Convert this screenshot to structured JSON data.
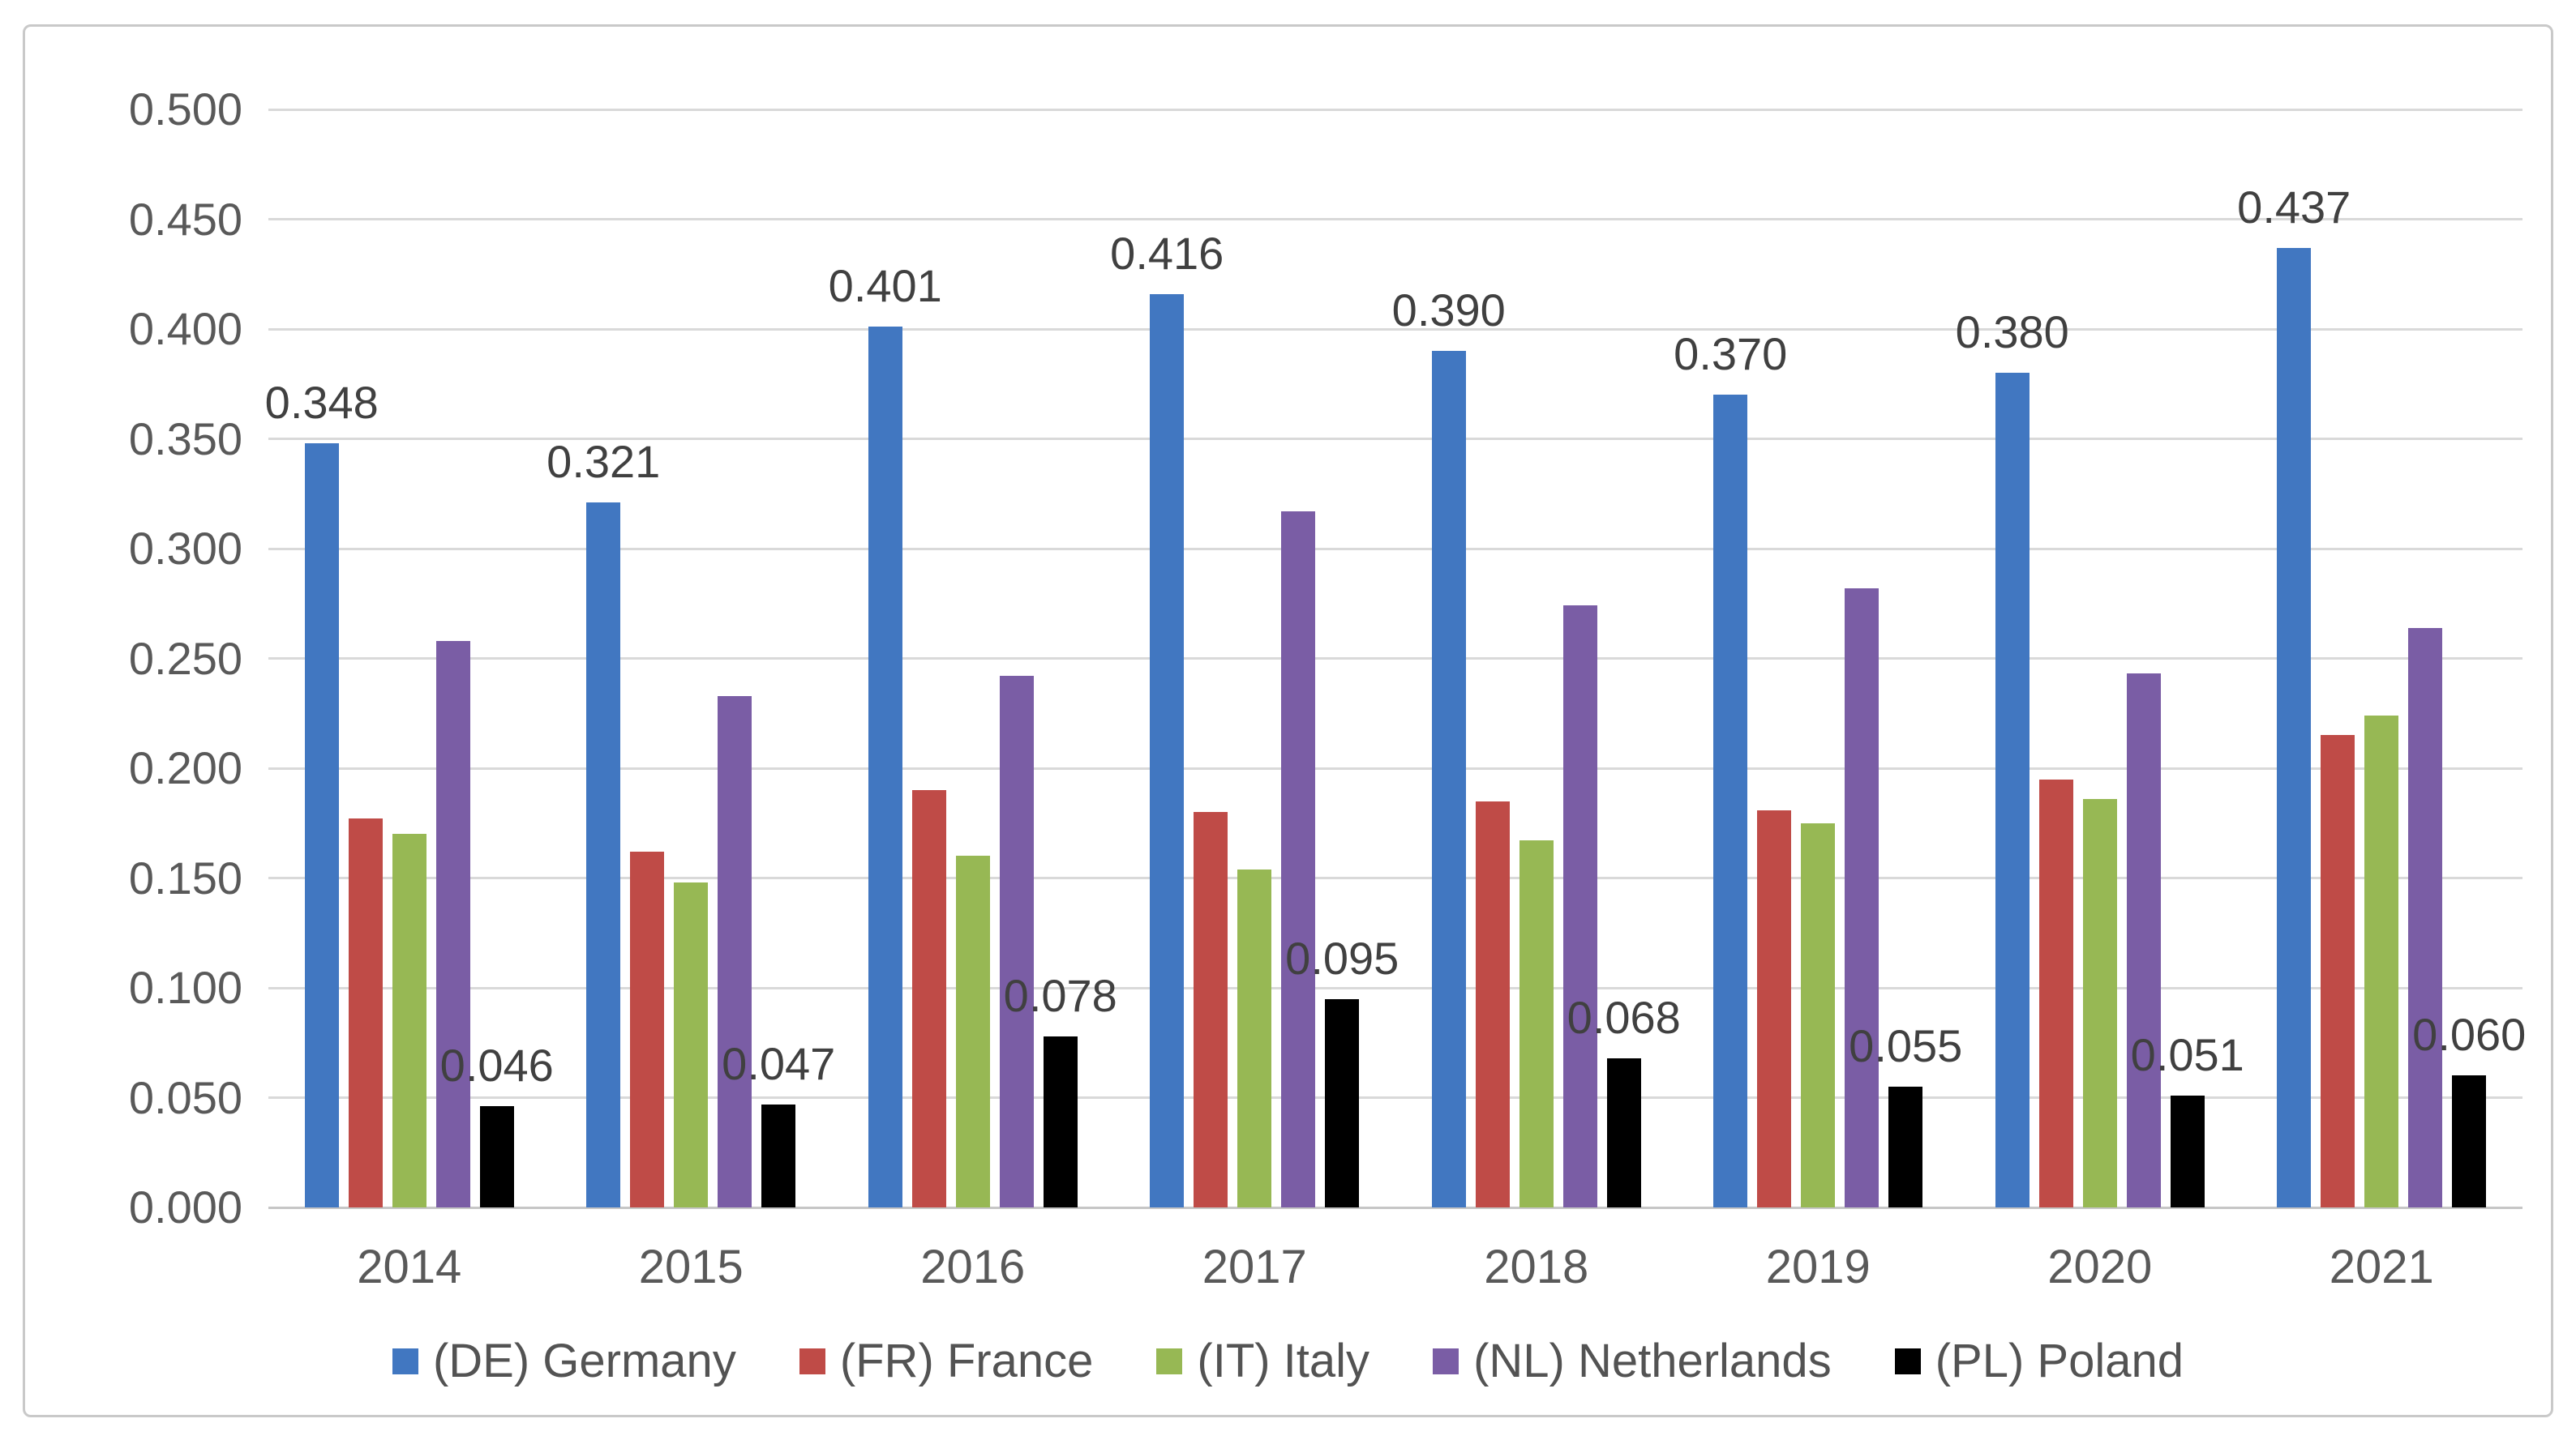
{
  "chart_data": {
    "type": "bar",
    "title": "",
    "categories": [
      "2014",
      "2015",
      "2016",
      "2017",
      "2018",
      "2019",
      "2020",
      "2021"
    ],
    "series": [
      {
        "name": "(DE) Germany",
        "color": "#4177C1",
        "data_labels": true,
        "values": [
          0.348,
          0.321,
          0.401,
          0.416,
          0.39,
          0.37,
          0.38,
          0.437
        ]
      },
      {
        "name": "(FR) France",
        "color": "#BF4B47",
        "data_labels": false,
        "values": [
          0.177,
          0.162,
          0.19,
          0.18,
          0.185,
          0.181,
          0.195,
          0.215
        ]
      },
      {
        "name": "(IT) Italy",
        "color": "#97B854",
        "data_labels": false,
        "values": [
          0.17,
          0.148,
          0.16,
          0.154,
          0.167,
          0.175,
          0.186,
          0.224
        ]
      },
      {
        "name": "(NL) Netherlands",
        "color": "#7A5DA5",
        "data_labels": false,
        "values": [
          0.258,
          0.233,
          0.242,
          0.317,
          0.274,
          0.282,
          0.243,
          0.264
        ]
      },
      {
        "name": "(PL) Poland",
        "color": "#000000",
        "data_labels": true,
        "values": [
          0.046,
          0.047,
          0.078,
          0.095,
          0.068,
          0.055,
          0.051,
          0.06
        ]
      }
    ],
    "y_axis": {
      "min": 0.0,
      "max": 0.5,
      "step": 0.05,
      "tick_labels": [
        "0.000",
        "0.050",
        "0.100",
        "0.150",
        "0.200",
        "0.250",
        "0.300",
        "0.350",
        "0.400",
        "0.450",
        "0.500"
      ],
      "label_decimals": 3
    },
    "grid": true,
    "legend_position": "bottom"
  },
  "colors": {
    "grid": "#d9d9d9",
    "axis_line": "#c6c6c6",
    "axis_text": "#595959",
    "data_label_text": "#404040",
    "frame_border": "#c9c9c9",
    "background": "#ffffff"
  }
}
